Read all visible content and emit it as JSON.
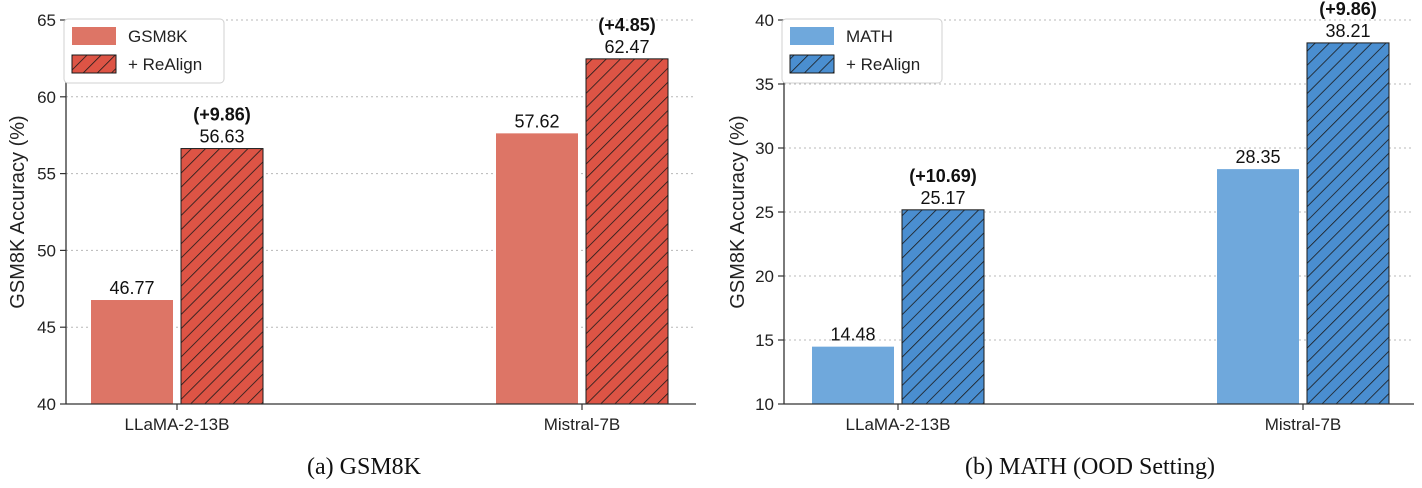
{
  "chart_data": [
    {
      "type": "bar",
      "caption": "(a) GSM8K",
      "categories": [
        "LLaMA-2-13B",
        "Mistral-7B"
      ],
      "series": [
        {
          "name": "GSM8K",
          "values": [
            46.77,
            57.62
          ],
          "labels": [
            "46.77",
            "57.62"
          ],
          "hatched": false
        },
        {
          "name": "+ ReAlign",
          "values": [
            56.63,
            62.47
          ],
          "labels": [
            "56.63",
            "62.47"
          ],
          "hatched": true
        }
      ],
      "gain_labels": [
        "(+9.86)",
        "(+4.85)"
      ],
      "ylabel": "GSM8K Accuracy (%)",
      "xlabel": "",
      "ylim": [
        40,
        65
      ],
      "yticks": [
        40,
        45,
        50,
        55,
        60,
        65
      ],
      "grid": "horizontal dotted",
      "legend": "top-left",
      "colors": {
        "base": "#dd7566",
        "realign": "#dd5445",
        "hatch": "#1a1a1a"
      }
    },
    {
      "type": "bar",
      "caption": "(b) MATH (OOD Setting)",
      "categories": [
        "LLaMA-2-13B",
        "Mistral-7B"
      ],
      "series": [
        {
          "name": "MATH",
          "values": [
            14.48,
            28.35
          ],
          "labels": [
            "14.48",
            "28.35"
          ],
          "hatched": false
        },
        {
          "name": "+ ReAlign",
          "values": [
            25.17,
            38.21
          ],
          "labels": [
            "25.17",
            "38.21"
          ],
          "hatched": true
        }
      ],
      "gain_labels": [
        "(+10.69)",
        "(+9.86)"
      ],
      "ylabel": "GSM8K Accuracy (%)",
      "xlabel": "",
      "ylim": [
        10,
        40
      ],
      "yticks": [
        10,
        15,
        20,
        25,
        30,
        35,
        40
      ],
      "grid": "horizontal dotted",
      "legend": "top-left",
      "colors": {
        "base": "#6fa8dc",
        "realign": "#4a8ed0",
        "hatch": "#1a1a1a"
      }
    }
  ]
}
